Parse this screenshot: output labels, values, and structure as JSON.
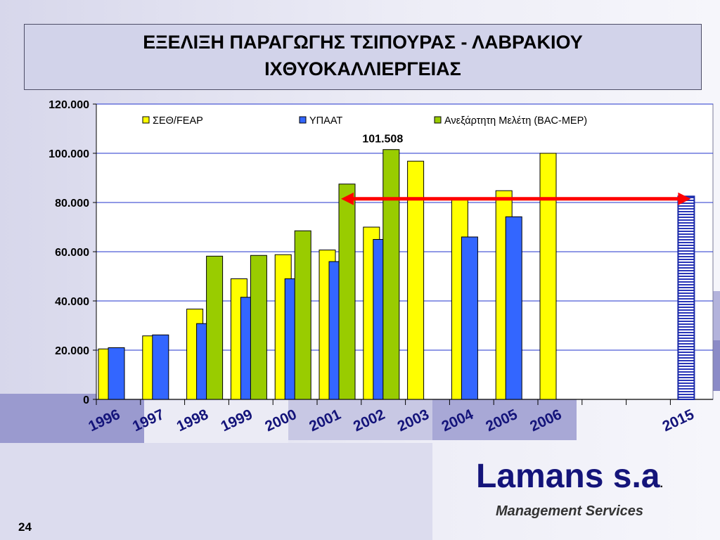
{
  "title_line1": "ΕΞΕΛΙΞΗ ΠΑΡΑΓΩΓΗΣ ΤΣΙΠΟΥΡΑΣ - ΛΑΒΡΑΚΙΟΥ",
  "title_line2": "ΙΧΘΥΟΚΑΛΛΙΕΡΓΕΙΑΣ",
  "brand": "Lamans s.a",
  "brand_dot": ".",
  "subtitle": "Management Services",
  "page_number": "24",
  "colors": {
    "yellow": "#ffff00",
    "blue": "#3366ff",
    "green": "#99cc00",
    "arrow": "#ff0000",
    "grid": "#2233cc",
    "brand": "#14147a"
  },
  "chart_data": {
    "type": "bar",
    "categories": [
      "1996",
      "1997",
      "1998",
      "1999",
      "2000",
      "2001",
      "2002",
      "2003",
      "2004",
      "2005",
      "2006",
      "2015"
    ],
    "category_positions": [
      0,
      1,
      2,
      3,
      4,
      5,
      6,
      7,
      8,
      9,
      10,
      13
    ],
    "series": [
      {
        "name": "ΣΕΘ/FEAP",
        "color": "#ffff00",
        "values": [
          20500,
          25800,
          36700,
          49000,
          58800,
          60700,
          70000,
          96800,
          82000,
          84800,
          100000,
          null
        ]
      },
      {
        "name": "ΥΠΑΑΤ",
        "color": "#3366ff",
        "values": [
          21000,
          26200,
          30800,
          41500,
          49000,
          56000,
          65000,
          null,
          66000,
          74200,
          null,
          82500
        ]
      },
      {
        "name": "Ανεξάρτητη Μελέτη (BAC-MEP)",
        "color": "#99cc00",
        "values": [
          null,
          null,
          58200,
          58500,
          68500,
          87500,
          101508,
          null,
          null,
          null,
          null,
          null
        ]
      }
    ],
    "yticks": [
      "0",
      "20.000",
      "40.000",
      "60.000",
      "80.000",
      "100.000",
      "120.000"
    ],
    "ylim": [
      0,
      120000
    ],
    "data_labels": [
      {
        "series": "Ανεξάρτητη Μελέτη (BAC-MEP)",
        "category": "2002",
        "text": "101.508"
      }
    ],
    "annotations": [
      {
        "type": "double-arrow",
        "from_category": "2001",
        "to_category": "2015",
        "y": 81500,
        "color": "#ff0000"
      }
    ],
    "projected_bar": {
      "series": "ΥΠΑΑΤ",
      "category": "2015",
      "style": "striped"
    },
    "legend_position": "top",
    "grid": true
  }
}
